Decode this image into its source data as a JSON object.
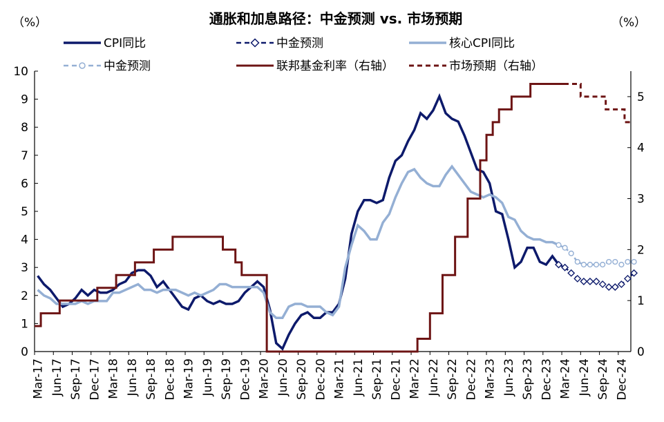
{
  "chart_data": {
    "type": "line",
    "title": "通胀和加息路径：中金预测 vs. 市场预期",
    "left_unit": "（%）",
    "right_unit": "（%）",
    "ylim_left": [
      0,
      10
    ],
    "ylim_right": [
      0,
      5.5
    ],
    "yticks_left": [
      0,
      1,
      2,
      3,
      4,
      5,
      6,
      7,
      8,
      9,
      10
    ],
    "yticks_right": [
      0,
      1,
      2,
      3,
      4,
      5
    ],
    "x_ticks": [
      {
        "label": "Mar-17",
        "index": 0
      },
      {
        "label": "Jun-17",
        "index": 3
      },
      {
        "label": "Sep-17",
        "index": 6
      },
      {
        "label": "Dec-17",
        "index": 9
      },
      {
        "label": "Mar-18",
        "index": 12
      },
      {
        "label": "Jun-18",
        "index": 15
      },
      {
        "label": "Sep-18",
        "index": 18
      },
      {
        "label": "Dec-18",
        "index": 21
      },
      {
        "label": "Mar-19",
        "index": 24
      },
      {
        "label": "Jun-19",
        "index": 27
      },
      {
        "label": "Sep-19",
        "index": 30
      },
      {
        "label": "Dec-19",
        "index": 33
      },
      {
        "label": "Mar-20",
        "index": 36
      },
      {
        "label": "Jun-20",
        "index": 39
      },
      {
        "label": "Sep-20",
        "index": 42
      },
      {
        "label": "Dec-20",
        "index": 45
      },
      {
        "label": "Mar-21",
        "index": 48
      },
      {
        "label": "Jun-21",
        "index": 51
      },
      {
        "label": "Sep-21",
        "index": 54
      },
      {
        "label": "Dec-21",
        "index": 57
      },
      {
        "label": "Mar-22",
        "index": 60
      },
      {
        "label": "Jun-22",
        "index": 63
      },
      {
        "label": "Sep-22",
        "index": 66
      },
      {
        "label": "Dec-22",
        "index": 69
      },
      {
        "label": "Mar-23",
        "index": 72
      },
      {
        "label": "Jun-23",
        "index": 75
      },
      {
        "label": "Sep-23",
        "index": 78
      },
      {
        "label": "Dec-23",
        "index": 81
      },
      {
        "label": "Mar-24",
        "index": 84
      },
      {
        "label": "Jun-24",
        "index": 87
      },
      {
        "label": "Sep-24",
        "index": 90
      },
      {
        "label": "Dec-24",
        "index": 93
      }
    ],
    "x_count": 95,
    "series": [
      {
        "name": "CPI同比",
        "color": "#0d1a6b",
        "style": "solid",
        "axis": "left",
        "start_index": 0,
        "values": [
          2.7,
          2.4,
          2.2,
          1.9,
          1.6,
          1.7,
          1.9,
          2.2,
          2.0,
          2.2,
          2.1,
          2.1,
          2.2,
          2.4,
          2.5,
          2.8,
          2.9,
          2.9,
          2.7,
          2.3,
          2.5,
          2.2,
          1.9,
          1.6,
          1.5,
          1.9,
          2.0,
          1.8,
          1.7,
          1.8,
          1.7,
          1.7,
          1.8,
          2.1,
          2.3,
          2.5,
          2.3,
          1.5,
          0.3,
          0.1,
          0.6,
          1.0,
          1.3,
          1.4,
          1.2,
          1.2,
          1.4,
          1.4,
          1.7,
          2.6,
          4.2,
          5.0,
          5.4,
          5.4,
          5.3,
          5.4,
          6.2,
          6.8,
          7.0,
          7.5,
          7.9,
          8.5,
          8.3,
          8.6,
          9.1,
          8.5,
          8.3,
          8.2,
          7.7,
          7.1,
          6.5,
          6.4,
          6.0,
          5.0,
          4.9,
          4.0,
          3.0,
          3.2,
          3.7,
          3.7,
          3.2,
          3.1,
          3.4,
          3.1
        ]
      },
      {
        "name": "中金预测",
        "color": "#0d1a6b",
        "style": "dashed",
        "marker": "diamond",
        "axis": "left",
        "start_index": 83,
        "values": [
          3.1,
          3.0,
          2.8,
          2.6,
          2.5,
          2.5,
          2.5,
          2.4,
          2.3,
          2.3,
          2.4,
          2.6,
          2.8
        ]
      },
      {
        "name": "核心CPI同比",
        "color": "#94afd4",
        "style": "solid",
        "axis": "left",
        "start_index": 0,
        "values": [
          2.2,
          2.0,
          1.9,
          1.7,
          1.7,
          1.7,
          1.7,
          1.8,
          1.7,
          1.8,
          1.8,
          1.8,
          2.1,
          2.1,
          2.2,
          2.3,
          2.4,
          2.2,
          2.2,
          2.1,
          2.2,
          2.2,
          2.2,
          2.1,
          2.0,
          2.1,
          2.0,
          2.1,
          2.2,
          2.4,
          2.4,
          2.3,
          2.3,
          2.3,
          2.3,
          2.3,
          2.1,
          1.4,
          1.2,
          1.2,
          1.6,
          1.7,
          1.7,
          1.6,
          1.6,
          1.6,
          1.4,
          1.3,
          1.6,
          3.0,
          3.8,
          4.5,
          4.3,
          4.0,
          4.0,
          4.6,
          4.9,
          5.5,
          6.0,
          6.4,
          6.5,
          6.2,
          6.0,
          5.9,
          5.9,
          6.3,
          6.6,
          6.3,
          6.0,
          5.7,
          5.6,
          5.5,
          5.6,
          5.5,
          5.3,
          4.8,
          4.7,
          4.3,
          4.1,
          4.0,
          4.0,
          3.9,
          3.9,
          3.8
        ]
      },
      {
        "name": "中金预测",
        "color": "#94afd4",
        "style": "dashed",
        "marker": "circle",
        "axis": "left",
        "start_index": 83,
        "values": [
          3.8,
          3.7,
          3.5,
          3.2,
          3.1,
          3.1,
          3.1,
          3.1,
          3.2,
          3.2,
          3.1,
          3.2,
          3.2
        ]
      },
      {
        "name": "联邦基金利率（右轴）",
        "color": "#6d1414",
        "style": "step",
        "axis": "right",
        "start_index": 0,
        "values": [
          0.5,
          0.75,
          0.75,
          0.75,
          1.0,
          1.0,
          1.0,
          1.0,
          1.0,
          1.0,
          1.25,
          1.25,
          1.25,
          1.5,
          1.5,
          1.5,
          1.75,
          1.75,
          1.75,
          2.0,
          2.0,
          2.0,
          2.25,
          2.25,
          2.25,
          2.25,
          2.25,
          2.25,
          2.25,
          2.25,
          2.0,
          2.0,
          1.75,
          1.5,
          1.5,
          1.5,
          1.5,
          0.0,
          0.0,
          0.0,
          0.0,
          0.0,
          0.0,
          0.0,
          0.0,
          0.0,
          0.0,
          0.0,
          0.0,
          0.0,
          0.0,
          0.0,
          0.0,
          0.0,
          0.0,
          0.0,
          0.0,
          0.0,
          0.0,
          0.0,
          0.0,
          0.25,
          0.25,
          0.75,
          0.75,
          1.5,
          1.5,
          2.25,
          2.25,
          3.0,
          3.0,
          3.75,
          4.25,
          4.5,
          4.75,
          4.75,
          5.0,
          5.0,
          5.0,
          5.25,
          5.25,
          5.25,
          5.25,
          5.25,
          5.25
        ]
      },
      {
        "name": "市场预期（右轴）",
        "color": "#6d1414",
        "style": "dashed-step",
        "axis": "right",
        "start_index": 83,
        "values": [
          5.25,
          5.25,
          5.25,
          5.25,
          5.0,
          5.0,
          5.0,
          5.0,
          4.75,
          4.75,
          4.75,
          4.5
        ]
      }
    ]
  }
}
